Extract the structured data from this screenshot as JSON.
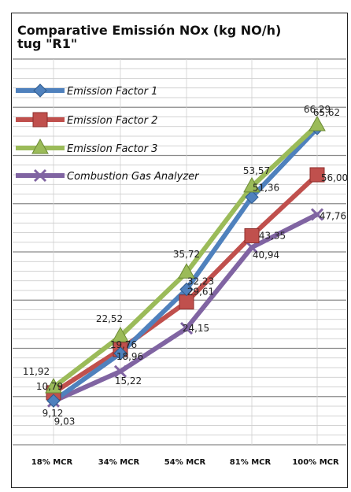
{
  "chart_data": {
    "type": "line",
    "title": "Comparative Emissión NOx (kg NO/h) tug \"R1\"",
    "title_line1": "Comparative Emissión NOx (kg NO/h)",
    "title_line2": "tug \"R1\"",
    "categories": [
      "18% MCR",
      "34% MCR",
      "54% MCR",
      "81% MCR",
      "100% MCR"
    ],
    "ylim": [
      0,
      80
    ],
    "grid": true,
    "legend_position": "top-left",
    "series": [
      {
        "name": "Emission Factor 1",
        "color": "#4f81bd",
        "marker": "diamond",
        "values": [
          9.12,
          18.96,
          32.23,
          51.36,
          65.62
        ],
        "labels": [
          "9,12",
          "18,96",
          "32,23",
          "51,36",
          "65,62"
        ]
      },
      {
        "name": "Emission Factor 2",
        "color": "#c0504d",
        "marker": "square",
        "values": [
          10.79,
          19.76,
          29.61,
          43.35,
          56.0
        ],
        "labels": [
          "10,79",
          "19,76",
          "29,61",
          "43,35",
          "56,00"
        ]
      },
      {
        "name": "Emission Factor 3",
        "color": "#9bbb59",
        "marker": "triangle",
        "values": [
          11.92,
          22.52,
          35.72,
          53.57,
          66.29
        ],
        "labels": [
          "11,92",
          "22,52",
          "35,72",
          "53,57",
          "66,29"
        ]
      },
      {
        "name": "Combustion Gas Analyzer",
        "color": "#8064a2",
        "marker": "x",
        "values": [
          9.03,
          15.22,
          24.15,
          40.94,
          47.76
        ],
        "labels": [
          "9,03",
          "15,22",
          "24,15",
          "40,94",
          "47,76"
        ]
      }
    ]
  }
}
